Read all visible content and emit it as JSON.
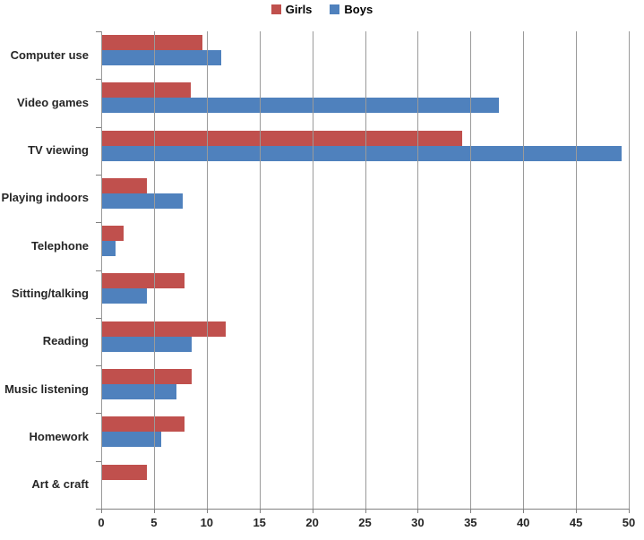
{
  "legend": {
    "items": [
      {
        "label": "Girls",
        "color": "#C0504D"
      },
      {
        "label": "Boys",
        "color": "#4F81BD"
      }
    ]
  },
  "colors": {
    "girls": "#C0504D",
    "boys": "#4F81BD",
    "gridline": "#9a9a9a",
    "axis": "#808080",
    "text": "#262626"
  },
  "chart_data": {
    "type": "bar",
    "orientation": "horizontal",
    "title": "",
    "categories": [
      "Computer use",
      "Video games",
      "TV viewing",
      "Playing indoors",
      "Telephone",
      "Sitting/talking",
      "Reading",
      "Music listening",
      "Homework",
      "Art & craft"
    ],
    "series": [
      {
        "name": "Girls",
        "color": "#C0504D",
        "values": [
          9.6,
          8.5,
          34.2,
          4.3,
          2.1,
          7.9,
          11.8,
          8.6,
          7.9,
          4.3
        ]
      },
      {
        "name": "Boys",
        "color": "#4F81BD",
        "values": [
          11.4,
          37.7,
          49.3,
          7.7,
          1.4,
          4.3,
          8.6,
          7.1,
          5.7,
          0
        ]
      }
    ],
    "xlim": [
      0,
      50
    ],
    "x_ticks": [
      0,
      5,
      10,
      15,
      20,
      25,
      30,
      35,
      40,
      45,
      50
    ],
    "grid": true,
    "legend_position": "top-center",
    "xlabel": "",
    "ylabel": ""
  }
}
